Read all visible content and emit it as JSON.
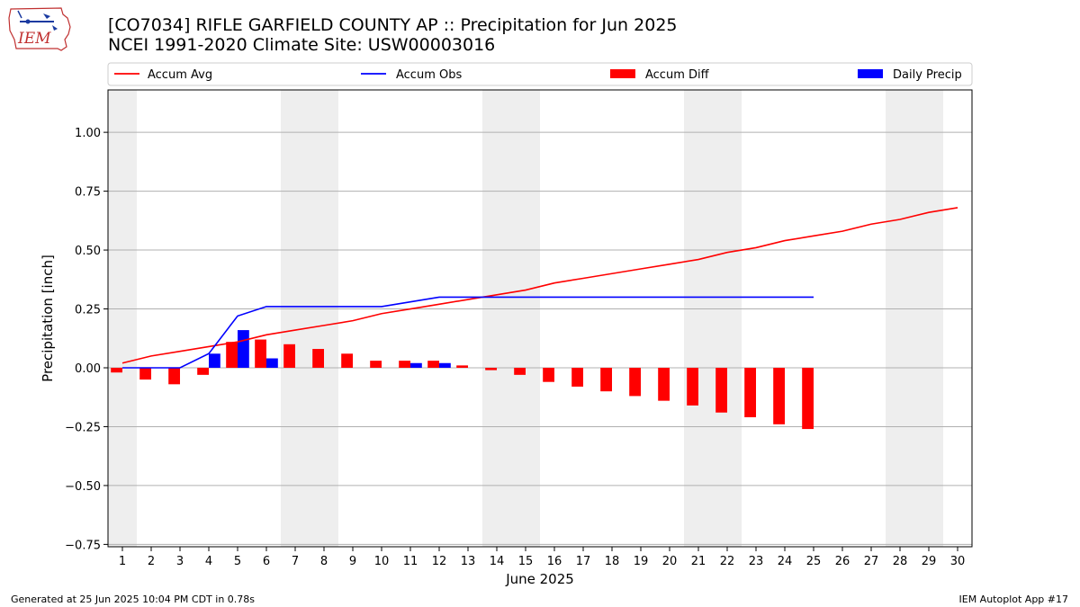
{
  "logo": {
    "text": "IEM",
    "icon": "iowa-state-outline-logo"
  },
  "title_line1": "[CO7034] RIFLE GARFIELD COUNTY AP :: Precipitation for Jun 2025",
  "title_line2": "NCEI 1991-2020 Climate Site: USW00003016",
  "footer_left": "Generated at 25 Jun 2025 10:04 PM CDT in 0.78s",
  "footer_right": "IEM Autoplot App #17",
  "chart_data": {
    "type": "bar",
    "xlabel": "June 2025",
    "ylabel": "Precipitation [inch]",
    "xlim": [
      0.5,
      30.5
    ],
    "ylim": [
      -0.76,
      1.18
    ],
    "x_ticks": [
      1,
      2,
      3,
      4,
      5,
      6,
      7,
      8,
      9,
      10,
      11,
      12,
      13,
      14,
      15,
      16,
      17,
      18,
      19,
      20,
      21,
      22,
      23,
      24,
      25,
      26,
      27,
      28,
      29,
      30
    ],
    "y_ticks": [
      -0.75,
      -0.5,
      -0.25,
      0.0,
      0.25,
      0.5,
      0.75,
      1.0
    ],
    "y_tick_labels": [
      "−0.75",
      "−0.50",
      "−0.25",
      "0.00",
      "0.25",
      "0.50",
      "0.75",
      "1.00"
    ],
    "grid": "horizontal",
    "weekend_shading": [
      [
        0.5,
        1.5
      ],
      [
        6.5,
        8.5
      ],
      [
        13.5,
        15.5
      ],
      [
        20.5,
        22.5
      ],
      [
        27.5,
        29.5
      ]
    ],
    "legend_position": "top",
    "series": [
      {
        "name": "Accum Avg",
        "type": "line",
        "color": "#ff0000",
        "x": [
          1,
          2,
          3,
          4,
          5,
          6,
          7,
          8,
          9,
          10,
          11,
          12,
          13,
          14,
          15,
          16,
          17,
          18,
          19,
          20,
          21,
          22,
          23,
          24,
          25,
          26,
          27,
          28,
          29,
          30
        ],
        "values": [
          0.02,
          0.05,
          0.07,
          0.09,
          0.11,
          0.14,
          0.16,
          0.18,
          0.2,
          0.23,
          0.25,
          0.27,
          0.29,
          0.31,
          0.33,
          0.36,
          0.38,
          0.4,
          0.42,
          0.44,
          0.46,
          0.49,
          0.51,
          0.54,
          0.56,
          0.58,
          0.61,
          0.63,
          0.66,
          0.68
        ]
      },
      {
        "name": "Accum Obs",
        "type": "line",
        "color": "#0000ff",
        "x": [
          1,
          2,
          3,
          4,
          5,
          6,
          7,
          8,
          9,
          10,
          11,
          12,
          13,
          14,
          15,
          16,
          17,
          18,
          19,
          20,
          21,
          22,
          23,
          24,
          25
        ],
        "values": [
          0.0,
          0.0,
          0.0,
          0.06,
          0.22,
          0.26,
          0.26,
          0.26,
          0.26,
          0.26,
          0.28,
          0.3,
          0.3,
          0.3,
          0.3,
          0.3,
          0.3,
          0.3,
          0.3,
          0.3,
          0.3,
          0.3,
          0.3,
          0.3,
          0.3
        ]
      },
      {
        "name": "Accum Diff",
        "type": "bar",
        "color": "#ff0000",
        "x": [
          1,
          2,
          3,
          4,
          5,
          6,
          7,
          8,
          9,
          10,
          11,
          12,
          13,
          14,
          15,
          16,
          17,
          18,
          19,
          20,
          21,
          22,
          23,
          24,
          25
        ],
        "values": [
          -0.02,
          -0.05,
          -0.07,
          -0.03,
          0.11,
          0.12,
          0.1,
          0.08,
          0.06,
          0.03,
          0.03,
          0.03,
          0.01,
          -0.01,
          -0.03,
          -0.06,
          -0.08,
          -0.1,
          -0.12,
          -0.14,
          -0.16,
          -0.19,
          -0.21,
          -0.24,
          -0.26
        ]
      },
      {
        "name": "Daily Precip",
        "type": "bar",
        "color": "#0000ff",
        "x": [
          1,
          2,
          3,
          4,
          5,
          6,
          7,
          8,
          9,
          10,
          11,
          12,
          13,
          14,
          15,
          16,
          17,
          18,
          19,
          20,
          21,
          22,
          23,
          24,
          25
        ],
        "values": [
          0,
          0,
          0,
          0.06,
          0.16,
          0.04,
          0,
          0,
          0,
          0,
          0.02,
          0.02,
          0,
          0,
          0,
          0,
          0,
          0,
          0,
          0,
          0,
          0,
          0,
          0,
          0
        ]
      }
    ]
  }
}
